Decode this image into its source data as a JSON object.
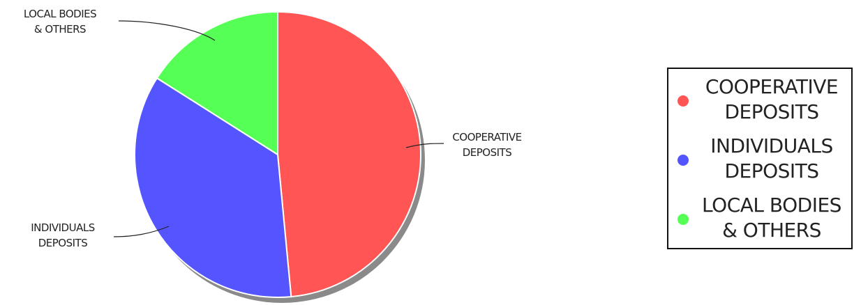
{
  "chart_data": {
    "type": "pie",
    "categories": [
      "COOPERATIVE DEPOSITS",
      "INDIVIDUALS DEPOSITS",
      "LOCAL BODIES & OTHERS"
    ],
    "slice_labels": [
      [
        "COOPERATIVE",
        "DEPOSITS"
      ],
      [
        "INDIVIDUALS",
        "DEPOSITS"
      ],
      [
        "LOCAL BODIES",
        "& OTHERS"
      ]
    ],
    "values": [
      48.5,
      35.5,
      16.0
    ],
    "colors": [
      "#ff5555",
      "#5555ff",
      "#55ff55"
    ],
    "legend": {
      "placement": "right",
      "entries": [
        {
          "label": "COOPERATIVE\nDEPOSITS",
          "color": "#ff5555"
        },
        {
          "label": "INDIVIDUALS\nDEPOSITS",
          "color": "#5555ff"
        },
        {
          "label": "LOCAL BODIES\n& OTHERS",
          "color": "#55ff55"
        }
      ]
    },
    "title": "",
    "grid": false
  }
}
